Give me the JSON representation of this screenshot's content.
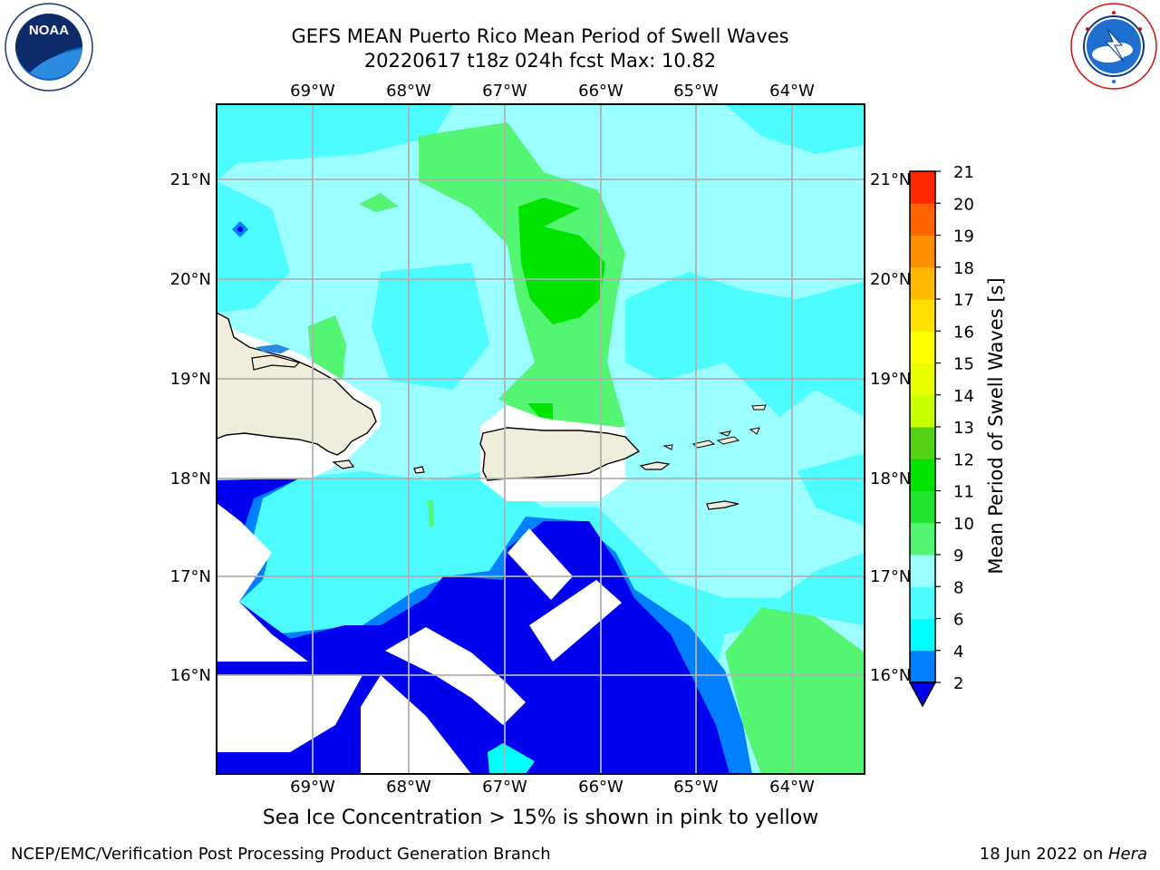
{
  "title": {
    "line1": "GEFS MEAN Puerto Rico Mean Period of Swell Waves",
    "line2": "20220617 t18z 024h fcst   Max: 10.82"
  },
  "caption": "Sea Ice Concentration > 15% is shown in pink to yellow",
  "footer": {
    "left": "NCEP/EMC/Verification Post Processing Product Generation Branch",
    "date": "18 Jun 2022 on ",
    "machine": "Hera"
  },
  "logos": {
    "left": "noaa-logo",
    "right": "nws-logo",
    "noaa_text": "NOAA"
  },
  "map": {
    "lon_labels": [
      "69°W",
      "68°W",
      "67°W",
      "66°W",
      "65°W",
      "64°W"
    ],
    "lat_labels": [
      "21°N",
      "20°N",
      "19°N",
      "18°N",
      "17°N",
      "16°N"
    ],
    "land_color": "#efeedc",
    "grid_color": "#b0b0b0"
  },
  "colorbar": {
    "label": "Mean Period of Swell Waves [s]",
    "ticks": [
      "2",
      "4",
      "6",
      "8",
      "9",
      "10",
      "11",
      "12",
      "13",
      "14",
      "15",
      "16",
      "17",
      "18",
      "19",
      "20",
      "21"
    ],
    "colors": [
      "#0000ee",
      "#007fff",
      "#00ffff",
      "#4dfcff",
      "#9cffff",
      "#53f573",
      "#20e42e",
      "#00e400",
      "#53d216",
      "#c8ff00",
      "#e9ff00",
      "#ffff00",
      "#ffe000",
      "#ffb900",
      "#ff8d00",
      "#ff6300",
      "#ff2800",
      "#ff0000"
    ]
  }
}
